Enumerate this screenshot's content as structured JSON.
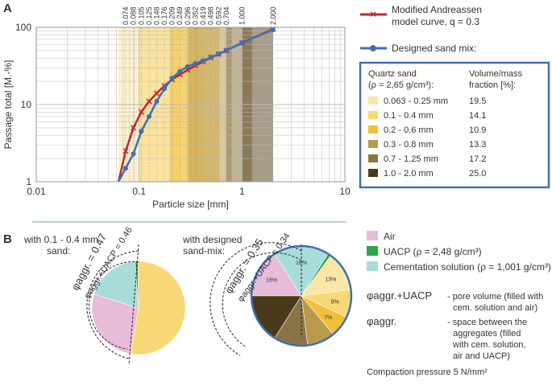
{
  "panel_a": {
    "label": "A",
    "chart_data": {
      "type": "line",
      "xscale": "log",
      "yscale": "log",
      "xlim": [
        0.01,
        10
      ],
      "ylim": [
        1,
        100
      ],
      "xlabel": "Particle size [mm]",
      "ylabel": "Passage total [M.-%]",
      "x_ticks": [
        "0.01",
        "0.1",
        "1",
        "10"
      ],
      "y_ticks": [
        "1",
        "10",
        "100"
      ],
      "top_ticks": [
        "0.074",
        "0.088",
        "0.105",
        "0.125",
        "0.148",
        "0.176",
        "0.209",
        "0.249",
        "0.296",
        "0.352",
        "0.419",
        "0.498",
        "0.592",
        "0.704",
        "1.000",
        "2.000"
      ],
      "grid": true,
      "bands": [
        {
          "from": 0.063,
          "to": 0.25,
          "color": "#fbe6a8"
        },
        {
          "from": 0.1,
          "to": 0.4,
          "color": "#f8d776"
        },
        {
          "from": 0.2,
          "to": 0.6,
          "color": "#f2bf3a"
        },
        {
          "from": 0.3,
          "to": 0.8,
          "color": "#b99a4c"
        },
        {
          "from": 0.7,
          "to": 1.25,
          "color": "#8a7446"
        },
        {
          "from": 1.0,
          "to": 2.0,
          "color": "#5e4a26"
        }
      ],
      "series": [
        {
          "name": "Modified Andreassen model curve, q = 0.3",
          "color": "#c0282d",
          "marker": "x",
          "x": [
            0.063,
            0.074,
            0.088,
            0.105,
            0.125,
            0.148,
            0.176,
            0.209,
            0.249,
            0.296,
            0.352,
            0.419,
            0.498,
            0.592,
            0.704,
            1.0,
            2.0
          ],
          "y": [
            1,
            2.5,
            5.0,
            8.0,
            11.0,
            14.0,
            17.5,
            21.0,
            24.5,
            28.0,
            32.0,
            36.0,
            40.5,
            45.0,
            50.0,
            63.0,
            95.0
          ]
        },
        {
          "name": "Designed sand mix:",
          "color": "#3f6fb5",
          "marker": "o",
          "x": [
            0.063,
            0.074,
            0.088,
            0.105,
            0.125,
            0.148,
            0.176,
            0.209,
            0.249,
            0.296,
            0.352,
            0.419,
            0.498,
            0.592,
            0.704,
            1.0,
            2.0
          ],
          "y": [
            1,
            1.5,
            2.3,
            4.5,
            7.0,
            11.0,
            16.0,
            22.0,
            27.0,
            31.0,
            34.0,
            37.0,
            41.0,
            45.0,
            50.0,
            63.0,
            93.0
          ]
        }
      ]
    },
    "legend_items": [
      {
        "text": "Modified Andreassen",
        "text2": "model curve, q = 0.3"
      },
      {
        "text": "Designed sand mix:"
      }
    ],
    "table": {
      "header_left": [
        "Quartz sand",
        "(ρ = 2,65 g/cm³):"
      ],
      "header_right": [
        "Volume/mass",
        "fraction [%]:"
      ],
      "rows": [
        {
          "range": "0.063 - 0.25 mm",
          "value": "19.5",
          "color": "#fbe6a8"
        },
        {
          "range": "0.1 - 0.4 mm",
          "value": "14.1",
          "color": "#f8d776"
        },
        {
          "range": "0.2 - 0.6 mm",
          "value": "10.9",
          "color": "#f2bf3a"
        },
        {
          "range": "0.3 - 0.8 mm",
          "value": "13.3",
          "color": "#b99a4c"
        },
        {
          "range": "0.7 - 1.25 mm",
          "value": "17.2",
          "color": "#8a7446"
        },
        {
          "range": "1.0 - 2.0 mm",
          "value": "25.0",
          "color": "#4a3a1c"
        }
      ]
    }
  },
  "panel_b": {
    "label": "B",
    "pie1": {
      "title": [
        "with 0.1 - 0.4 mm",
        "sand:"
      ],
      "phi_aggr": "φaggr. = 0.47",
      "phi_aggr_uacp": "φaggr.+UACP = 0.46",
      "chart_data": {
        "type": "pie",
        "slices": [
          {
            "name": "Air",
            "value": 27,
            "color": "#e6bcd9"
          },
          {
            "name": "Cementation solution",
            "value": 19,
            "color": "#a8dcd9"
          },
          {
            "name": "UACP",
            "value": 1,
            "color": "#2aa84a"
          },
          {
            "name": "Sand 0.1 - 0.4 mm",
            "value": 53,
            "color": "#f8d776"
          }
        ]
      }
    },
    "pie2": {
      "title": [
        "with designed",
        "sand-mix:"
      ],
      "phi_aggr": "φaggr. = 0.35",
      "phi_aggr_uacp": "φaggr.+UACP = 0.34",
      "chart_data": {
        "type": "pie",
        "slices": [
          {
            "name": "Air",
            "value": 16,
            "label": "16%",
            "color": "#e6bcd9"
          },
          {
            "name": "Cementation solution",
            "value": 18,
            "label": "18%",
            "color": "#a8dcd9"
          },
          {
            "name": "UACP",
            "value": 1,
            "label": "",
            "color": "#2aa84a"
          },
          {
            "name": "0.063 - 0.25 mm",
            "value": 13,
            "label": "13%",
            "color": "#fbe6a8"
          },
          {
            "name": "0.1 - 0.4 mm",
            "value": 9,
            "label": "9%",
            "color": "#f8d776"
          },
          {
            "name": "0.2 - 0.6 mm",
            "value": 7,
            "label": "7%",
            "color": "#f2bf3a"
          },
          {
            "name": "0.3 - 0.8 mm",
            "value": 9,
            "label": "",
            "color": "#b99a4c"
          },
          {
            "name": "0.7 - 1.25 mm",
            "value": 11,
            "label": "",
            "color": "#8a7446"
          },
          {
            "name": "1.0 - 2.0 mm",
            "value": 16,
            "label": "",
            "color": "#4a3a1c"
          }
        ]
      }
    },
    "legend": [
      {
        "text": "Air",
        "color": "#e6bcd9"
      },
      {
        "text": "UACP (ρ = 2,48 g/cm³)",
        "color": "#2aa84a"
      },
      {
        "text": "Cementation solution (ρ = 1,001 g/cm³)",
        "color": "#a8dcd9"
      }
    ],
    "definitions": [
      {
        "symbol": "φaggr.+UACP",
        "lines": [
          "- pore volume (filled with",
          "cem. solution and air)"
        ]
      },
      {
        "symbol": "φaggr.",
        "lines": [
          "- space between the",
          "aggregates (filled",
          "with cem. solution,",
          "air and UACP)"
        ]
      }
    ],
    "compaction": "Compaction pressure 5 N/mm²"
  }
}
